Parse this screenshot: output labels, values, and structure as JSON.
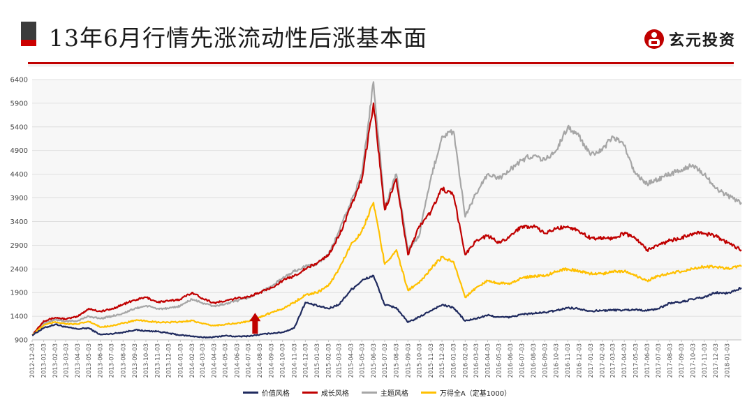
{
  "header": {
    "title": "13年6月行情先涨流动性后涨基本面",
    "logo_text": "玄元投资",
    "accent_dark": "#3b3b3b",
    "accent_red": "#cc0000"
  },
  "chart_data": {
    "type": "line",
    "ylim": [
      900,
      6400
    ],
    "yticks": [
      900,
      1400,
      1900,
      2400,
      2900,
      3400,
      3900,
      4400,
      4900,
      5400,
      5900,
      6400
    ],
    "x_ticks": [
      "2012-12-03",
      "2013-01-03",
      "2013-02-03",
      "2013-03-03",
      "2013-04-03",
      "2013-05-03",
      "2013-06-03",
      "2013-07-03",
      "2013-08-03",
      "2013-09-03",
      "2013-10-03",
      "2013-11-03",
      "2013-12-03",
      "2014-01-03",
      "2014-02-03",
      "2014-03-03",
      "2014-04-03",
      "2014-05-03",
      "2014-06-03",
      "2014-07-03",
      "2014-08-03",
      "2014-09-03",
      "2014-10-03",
      "2014-11-03",
      "2014-12-03",
      "2015-01-03",
      "2015-02-03",
      "2015-03-03",
      "2015-04-03",
      "2015-05-03",
      "2015-06-03",
      "2015-07-03",
      "2015-08-03",
      "2015-09-03",
      "2015-10-03",
      "2015-11-03",
      "2015-12-03",
      "2016-01-03",
      "2016-02-03",
      "2016-03-03",
      "2016-04-03",
      "2016-05-03",
      "2016-06-03",
      "2016-07-03",
      "2016-08-03",
      "2016-09-03",
      "2016-10-03",
      "2016-11-03",
      "2016-12-03",
      "2017-01-03",
      "2017-02-03",
      "2017-03-03",
      "2017-04-03",
      "2017-05-03",
      "2017-06-03",
      "2017-07-03",
      "2017-08-03",
      "2017-09-03",
      "2017-10-03",
      "2017-11-03",
      "2017-12-03",
      "2018-01-03"
    ],
    "grid": true,
    "legend_position": "bottom",
    "annotation": {
      "type": "arrow-up",
      "x": "2014-07-03",
      "color": "#c00000"
    },
    "series": [
      {
        "name": "价值风格",
        "color": "#1f2a5e",
        "x": [
          "2012-12-03",
          "2013-01-03",
          "2013-02-03",
          "2013-03-03",
          "2013-04-03",
          "2013-05-03",
          "2013-06-03",
          "2013-07-03",
          "2013-08-03",
          "2013-09-03",
          "2013-10-03",
          "2013-11-03",
          "2013-12-03",
          "2014-01-03",
          "2014-02-03",
          "2014-03-03",
          "2014-04-03",
          "2014-05-03",
          "2014-06-03",
          "2014-07-03",
          "2014-08-03",
          "2014-09-03",
          "2014-10-03",
          "2014-11-03",
          "2014-12-03",
          "2015-01-03",
          "2015-02-03",
          "2015-03-03",
          "2015-04-03",
          "2015-05-03",
          "2015-06-03",
          "2015-07-03",
          "2015-08-03",
          "2015-09-03",
          "2015-10-03",
          "2015-11-03",
          "2015-12-03",
          "2016-01-03",
          "2016-02-03",
          "2016-03-03",
          "2016-04-03",
          "2016-05-03",
          "2016-06-03",
          "2016-07-03",
          "2016-08-03",
          "2016-09-03",
          "2016-10-03",
          "2016-11-03",
          "2016-12-03",
          "2017-01-03",
          "2017-02-03",
          "2017-03-03",
          "2017-04-03",
          "2017-05-03",
          "2017-06-03",
          "2017-07-03",
          "2017-08-03",
          "2017-09-03",
          "2017-10-03",
          "2017-11-03",
          "2017-12-03",
          "2018-01-03",
          "2018-02-10"
        ],
        "values": [
          1000,
          1150,
          1230,
          1170,
          1130,
          1150,
          1010,
          1030,
          1060,
          1110,
          1090,
          1080,
          1040,
          1000,
          980,
          950,
          960,
          990,
          970,
          980,
          1010,
          1040,
          1060,
          1150,
          1690,
          1620,
          1560,
          1650,
          1950,
          2150,
          2260,
          1640,
          1580,
          1270,
          1380,
          1520,
          1640,
          1580,
          1300,
          1350,
          1420,
          1380,
          1380,
          1440,
          1460,
          1480,
          1520,
          1580,
          1560,
          1510,
          1520,
          1530,
          1530,
          1540,
          1520,
          1560,
          1680,
          1700,
          1760,
          1800,
          1900,
          1880,
          2000
        ]
      },
      {
        "name": "成长风格",
        "color": "#c00000",
        "x": [
          "2012-12-03",
          "2013-01-03",
          "2013-02-03",
          "2013-03-03",
          "2013-04-03",
          "2013-05-03",
          "2013-06-03",
          "2013-07-03",
          "2013-08-03",
          "2013-09-03",
          "2013-10-03",
          "2013-11-03",
          "2013-12-03",
          "2014-01-03",
          "2014-02-03",
          "2014-03-03",
          "2014-04-03",
          "2014-05-03",
          "2014-06-03",
          "2014-07-03",
          "2014-08-03",
          "2014-09-03",
          "2014-10-03",
          "2014-11-03",
          "2014-12-03",
          "2015-01-03",
          "2015-02-03",
          "2015-03-03",
          "2015-04-03",
          "2015-05-03",
          "2015-06-03",
          "2015-07-03",
          "2015-08-03",
          "2015-09-03",
          "2015-10-03",
          "2015-11-03",
          "2015-12-03",
          "2016-01-03",
          "2016-02-03",
          "2016-03-03",
          "2016-04-03",
          "2016-05-03",
          "2016-06-03",
          "2016-07-03",
          "2016-08-03",
          "2016-09-03",
          "2016-10-03",
          "2016-11-03",
          "2016-12-03",
          "2017-01-03",
          "2017-02-03",
          "2017-03-03",
          "2017-04-03",
          "2017-05-03",
          "2017-06-03",
          "2017-07-03",
          "2017-08-03",
          "2017-09-03",
          "2017-10-03",
          "2017-11-03",
          "2017-12-03",
          "2018-01-03",
          "2018-02-10"
        ],
        "values": [
          1000,
          1300,
          1370,
          1340,
          1390,
          1560,
          1500,
          1550,
          1650,
          1740,
          1800,
          1700,
          1720,
          1760,
          1900,
          1780,
          1680,
          1720,
          1780,
          1810,
          1900,
          2000,
          2150,
          2250,
          2400,
          2520,
          2700,
          3100,
          3700,
          4300,
          5900,
          3650,
          4300,
          2700,
          3300,
          3600,
          4100,
          3950,
          2700,
          3000,
          3100,
          2950,
          3100,
          3300,
          3300,
          3150,
          3250,
          3300,
          3200,
          3050,
          3050,
          3050,
          3150,
          3050,
          2800,
          2900,
          3000,
          3050,
          3150,
          3150,
          3100,
          2950,
          2800
        ]
      },
      {
        "name": "主题风格",
        "color": "#a6a6a6",
        "x": [
          "2012-12-03",
          "2013-01-03",
          "2013-02-03",
          "2013-03-03",
          "2013-04-03",
          "2013-05-03",
          "2013-06-03",
          "2013-07-03",
          "2013-08-03",
          "2013-09-03",
          "2013-10-03",
          "2013-11-03",
          "2013-12-03",
          "2014-01-03",
          "2014-02-03",
          "2014-03-03",
          "2014-04-03",
          "2014-05-03",
          "2014-06-03",
          "2014-07-03",
          "2014-08-03",
          "2014-09-03",
          "2014-10-03",
          "2014-11-03",
          "2014-12-03",
          "2015-01-03",
          "2015-02-03",
          "2015-03-03",
          "2015-04-03",
          "2015-05-03",
          "2015-06-03",
          "2015-07-03",
          "2015-08-03",
          "2015-09-03",
          "2015-10-03",
          "2015-11-03",
          "2015-12-03",
          "2016-01-03",
          "2016-02-03",
          "2016-03-03",
          "2016-04-03",
          "2016-05-03",
          "2016-06-03",
          "2016-07-03",
          "2016-08-03",
          "2016-09-03",
          "2016-10-03",
          "2016-11-03",
          "2016-12-03",
          "2017-01-03",
          "2017-02-03",
          "2017-03-03",
          "2017-04-03",
          "2017-05-03",
          "2017-06-03",
          "2017-07-03",
          "2017-08-03",
          "2017-09-03",
          "2017-10-03",
          "2017-11-03",
          "2017-12-03",
          "2018-01-03",
          "2018-02-10"
        ],
        "values": [
          1000,
          1250,
          1330,
          1290,
          1300,
          1400,
          1350,
          1400,
          1460,
          1560,
          1620,
          1560,
          1560,
          1620,
          1760,
          1680,
          1610,
          1660,
          1720,
          1790,
          1900,
          2030,
          2200,
          2350,
          2450,
          2500,
          2700,
          3200,
          3800,
          4400,
          6350,
          3700,
          4400,
          2800,
          3100,
          4300,
          5200,
          5300,
          3500,
          4000,
          4400,
          4300,
          4500,
          4700,
          4800,
          4700,
          4900,
          5400,
          5200,
          4800,
          4900,
          5200,
          5000,
          4400,
          4200,
          4300,
          4400,
          4500,
          4600,
          4400,
          4100,
          3950,
          3800
        ]
      },
      {
        "name": "万得全A（定基1000）",
        "color": "#ffc000",
        "x": [
          "2012-12-03",
          "2013-01-03",
          "2013-02-03",
          "2013-03-03",
          "2013-04-03",
          "2013-05-03",
          "2013-06-03",
          "2013-07-03",
          "2013-08-03",
          "2013-09-03",
          "2013-10-03",
          "2013-11-03",
          "2013-12-03",
          "2014-01-03",
          "2014-02-03",
          "2014-03-03",
          "2014-04-03",
          "2014-05-03",
          "2014-06-03",
          "2014-07-03",
          "2014-08-03",
          "2014-09-03",
          "2014-10-03",
          "2014-11-03",
          "2014-12-03",
          "2015-01-03",
          "2015-02-03",
          "2015-03-03",
          "2015-04-03",
          "2015-05-03",
          "2015-06-03",
          "2015-07-03",
          "2015-08-03",
          "2015-09-03",
          "2015-10-03",
          "2015-11-03",
          "2015-12-03",
          "2016-01-03",
          "2016-02-03",
          "2016-03-03",
          "2016-04-03",
          "2016-05-03",
          "2016-06-03",
          "2016-07-03",
          "2016-08-03",
          "2016-09-03",
          "2016-10-03",
          "2016-11-03",
          "2016-12-03",
          "2017-01-03",
          "2017-02-03",
          "2017-03-03",
          "2017-04-03",
          "2017-05-03",
          "2017-06-03",
          "2017-07-03",
          "2017-08-03",
          "2017-09-03",
          "2017-10-03",
          "2017-11-03",
          "2017-12-03",
          "2018-01-03",
          "2018-02-10"
        ],
        "values": [
          1000,
          1210,
          1280,
          1240,
          1230,
          1290,
          1170,
          1200,
          1250,
          1310,
          1300,
          1270,
          1270,
          1280,
          1310,
          1240,
          1200,
          1230,
          1250,
          1290,
          1380,
          1480,
          1560,
          1690,
          1850,
          1900,
          2050,
          2400,
          2900,
          3200,
          3800,
          2500,
          2800,
          1950,
          2100,
          2400,
          2650,
          2550,
          1800,
          2000,
          2150,
          2100,
          2100,
          2200,
          2250,
          2250,
          2350,
          2400,
          2350,
          2300,
          2300,
          2350,
          2350,
          2250,
          2150,
          2250,
          2300,
          2350,
          2400,
          2450,
          2450,
          2400,
          2450
        ]
      }
    ]
  }
}
